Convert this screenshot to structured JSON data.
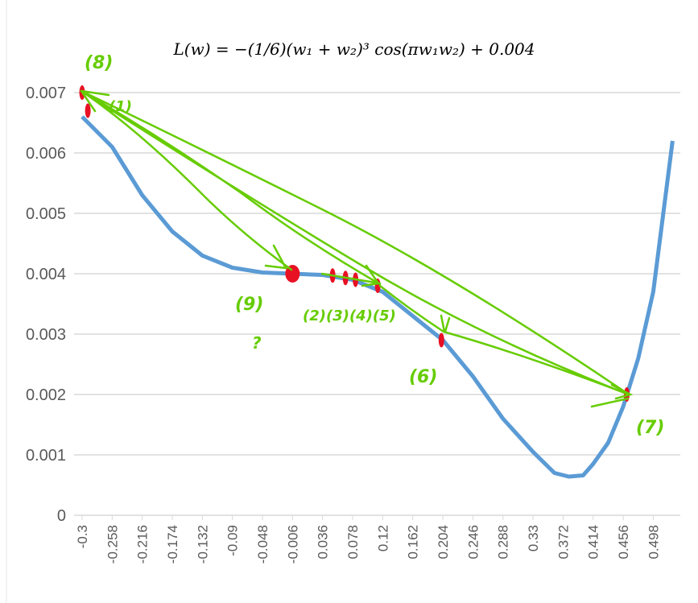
{
  "chart_data": {
    "type": "line",
    "title": "L(w) = −(1/6)(w₁ + w₂)³ cos(πw₁w₂) + 0.004",
    "xlabel": "",
    "ylabel": "",
    "ylim": [
      0,
      0.007
    ],
    "xlim": [
      -0.3,
      0.525
    ],
    "grid": "horizontal",
    "yticks": [
      "0",
      "0.001",
      "0.002",
      "0.003",
      "0.004",
      "0.005",
      "0.006",
      "0.007"
    ],
    "xticks": [
      "-0.3",
      "-0.258",
      "-0.216",
      "-0.174",
      "-0.132",
      "-0.09",
      "-0.048",
      "-0.006",
      "0.036",
      "0.078",
      "0.12",
      "0.162",
      "0.204",
      "0.246",
      "0.288",
      "0.33",
      "0.372",
      "0.414",
      "0.456",
      "0.498"
    ],
    "series": [
      {
        "name": "L(w)",
        "color": "#5b9bd5",
        "x": [
          -0.3,
          -0.258,
          -0.216,
          -0.174,
          -0.132,
          -0.09,
          -0.048,
          -0.006,
          0.036,
          0.078,
          0.12,
          0.162,
          0.204,
          0.246,
          0.288,
          0.33,
          0.36,
          0.38,
          0.4,
          0.414,
          0.435,
          0.456,
          0.477,
          0.498,
          0.512,
          0.525
        ],
        "y": [
          0.0066,
          0.0061,
          0.0053,
          0.0047,
          0.0043,
          0.0041,
          0.00402,
          0.004,
          0.00398,
          0.0039,
          0.0037,
          0.0033,
          0.0029,
          0.0023,
          0.0016,
          0.00105,
          0.0007,
          0.00064,
          0.00066,
          0.00085,
          0.0012,
          0.0018,
          0.0026,
          0.0037,
          0.005,
          0.0062
        ]
      }
    ],
    "annotations": {
      "color": "#66cc00",
      "marker_color": "#e81123",
      "labels": [
        "(8)",
        "(1)",
        "(9)",
        "?",
        "(2)(3)(4)(5)",
        "(6)",
        "(7)"
      ],
      "markers": [
        {
          "x": -0.3,
          "y": 0.007
        },
        {
          "x": -0.292,
          "y": 0.0067
        },
        {
          "x": -0.006,
          "y": 0.004
        },
        {
          "x": 0.05,
          "y": 0.00397
        },
        {
          "x": 0.068,
          "y": 0.00393
        },
        {
          "x": 0.082,
          "y": 0.0039
        },
        {
          "x": 0.113,
          "y": 0.0038
        },
        {
          "x": 0.202,
          "y": 0.0029
        },
        {
          "x": 0.461,
          "y": 0.002
        }
      ]
    }
  }
}
